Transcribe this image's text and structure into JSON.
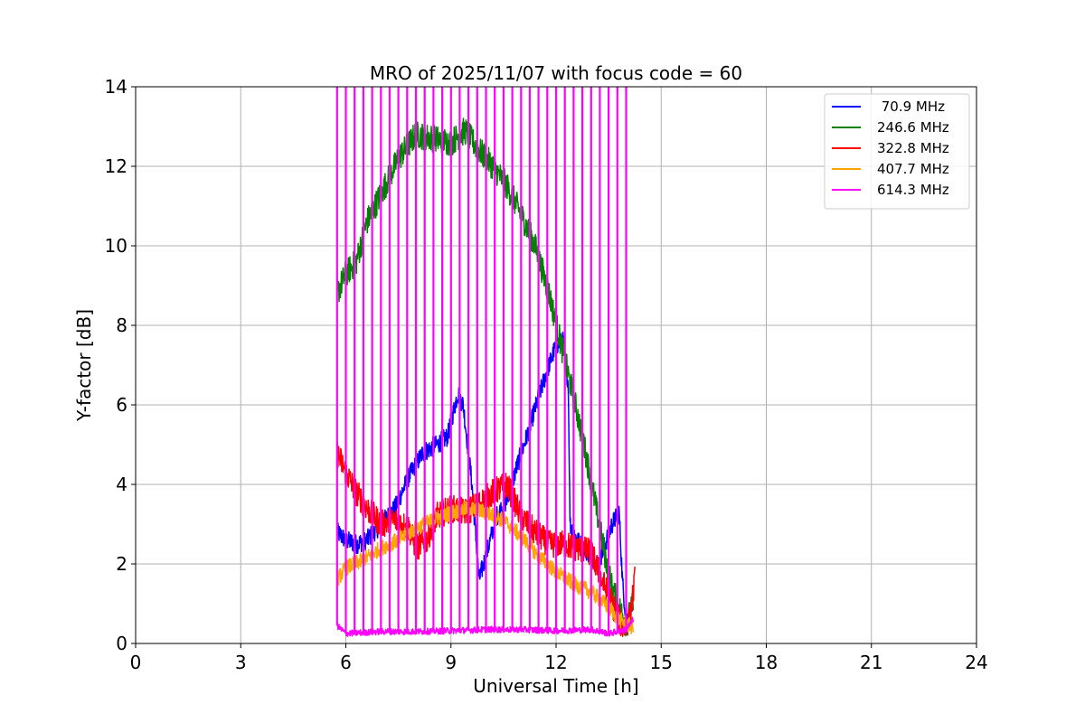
{
  "chart_data": {
    "type": "line",
    "title": "MRO of 2025/11/07 with focus code = 60",
    "xlabel": "Universal Time [h]",
    "ylabel": "Y-factor [dB]",
    "xlim": [
      0,
      24
    ],
    "ylim": [
      0,
      14
    ],
    "xticks": [
      0,
      3,
      6,
      9,
      12,
      15,
      18,
      21,
      24
    ],
    "yticks": [
      0,
      2,
      4,
      6,
      8,
      10,
      12,
      14
    ],
    "grid": true,
    "legend_position": "top-right",
    "series": [
      {
        "name": " 70.9 MHz",
        "color": "#0000ff",
        "noise": 0.25,
        "x": [
          5.75,
          6.0,
          6.3,
          6.6,
          7.0,
          7.4,
          7.8,
          8.2,
          8.6,
          8.9,
          9.2,
          9.35,
          9.6,
          9.8,
          10.0,
          10.3,
          10.6,
          10.9,
          11.2,
          11.5,
          11.8,
          12.0,
          12.2,
          12.35,
          12.4,
          12.6,
          12.8,
          13.0,
          13.2,
          13.4,
          13.6,
          13.8,
          13.9,
          14.0,
          14.2
        ],
        "y": [
          2.8,
          2.6,
          2.5,
          2.6,
          3.0,
          3.4,
          4.2,
          4.8,
          5.0,
          5.2,
          6.3,
          6.0,
          4.0,
          1.6,
          2.2,
          3.2,
          3.6,
          4.5,
          5.3,
          6.2,
          7.0,
          7.5,
          7.6,
          6.5,
          3.0,
          2.6,
          2.4,
          2.2,
          2.0,
          2.5,
          3.0,
          3.3,
          1.5,
          0.6,
          1.0
        ]
      },
      {
        "name": "246.6 MHz",
        "color": "#008000",
        "noise": 0.35,
        "x": [
          5.75,
          6.0,
          6.3,
          6.6,
          7.0,
          7.5,
          8.0,
          8.5,
          9.0,
          9.4,
          9.8,
          10.2,
          10.6,
          11.0,
          11.4,
          11.8,
          12.2,
          12.5,
          12.8,
          13.1,
          13.4,
          13.6,
          13.8,
          14.0,
          14.2
        ],
        "y": [
          8.8,
          9.3,
          9.6,
          10.6,
          11.3,
          12.2,
          12.8,
          12.7,
          12.6,
          12.9,
          12.4,
          12.0,
          11.5,
          10.8,
          10.0,
          8.8,
          7.3,
          6.2,
          5.0,
          3.6,
          2.2,
          1.4,
          0.9,
          0.5,
          1.0
        ]
      },
      {
        "name": "322.8 MHz",
        "color": "#ff0000",
        "noise": 0.35,
        "x": [
          5.75,
          6.0,
          6.3,
          6.6,
          7.0,
          7.4,
          7.8,
          8.0,
          8.3,
          8.6,
          9.0,
          9.4,
          9.8,
          10.2,
          10.6,
          11.0,
          11.4,
          11.8,
          12.2,
          12.6,
          13.0,
          13.3,
          13.6,
          13.9,
          14.1,
          14.25
        ],
        "y": [
          4.8,
          4.3,
          3.8,
          3.4,
          3.0,
          3.1,
          2.9,
          2.4,
          2.6,
          3.2,
          3.4,
          3.3,
          3.5,
          3.8,
          4.0,
          3.2,
          2.8,
          2.5,
          2.5,
          2.4,
          2.3,
          1.6,
          1.0,
          0.4,
          0.6,
          1.6
        ]
      },
      {
        "name": "407.7 MHz",
        "color": "#ffa500",
        "noise": 0.2,
        "x": [
          5.75,
          6.0,
          6.5,
          7.0,
          7.5,
          8.0,
          8.5,
          9.0,
          9.5,
          10.0,
          10.5,
          11.0,
          11.5,
          12.0,
          12.5,
          13.0,
          13.5,
          13.8,
          14.0,
          14.2
        ],
        "y": [
          1.6,
          1.9,
          2.1,
          2.4,
          2.6,
          2.9,
          3.1,
          3.3,
          3.4,
          3.3,
          3.1,
          2.7,
          2.2,
          1.8,
          1.5,
          1.3,
          0.9,
          0.6,
          0.5,
          0.4
        ]
      },
      {
        "name": "614.3 MHz",
        "color": "#ff00ff",
        "noise": 0.08,
        "x": [
          5.75,
          6.0,
          7.0,
          8.0,
          9.0,
          10.0,
          11.0,
          12.0,
          13.0,
          13.5,
          14.0,
          14.2
        ],
        "y": [
          0.45,
          0.25,
          0.3,
          0.3,
          0.32,
          0.35,
          0.35,
          0.32,
          0.35,
          0.25,
          0.35,
          0.6
        ],
        "spike_start": 5.75,
        "spike_end": 14.0,
        "spike_interval": 0.25,
        "spike_top": 14
      }
    ]
  }
}
